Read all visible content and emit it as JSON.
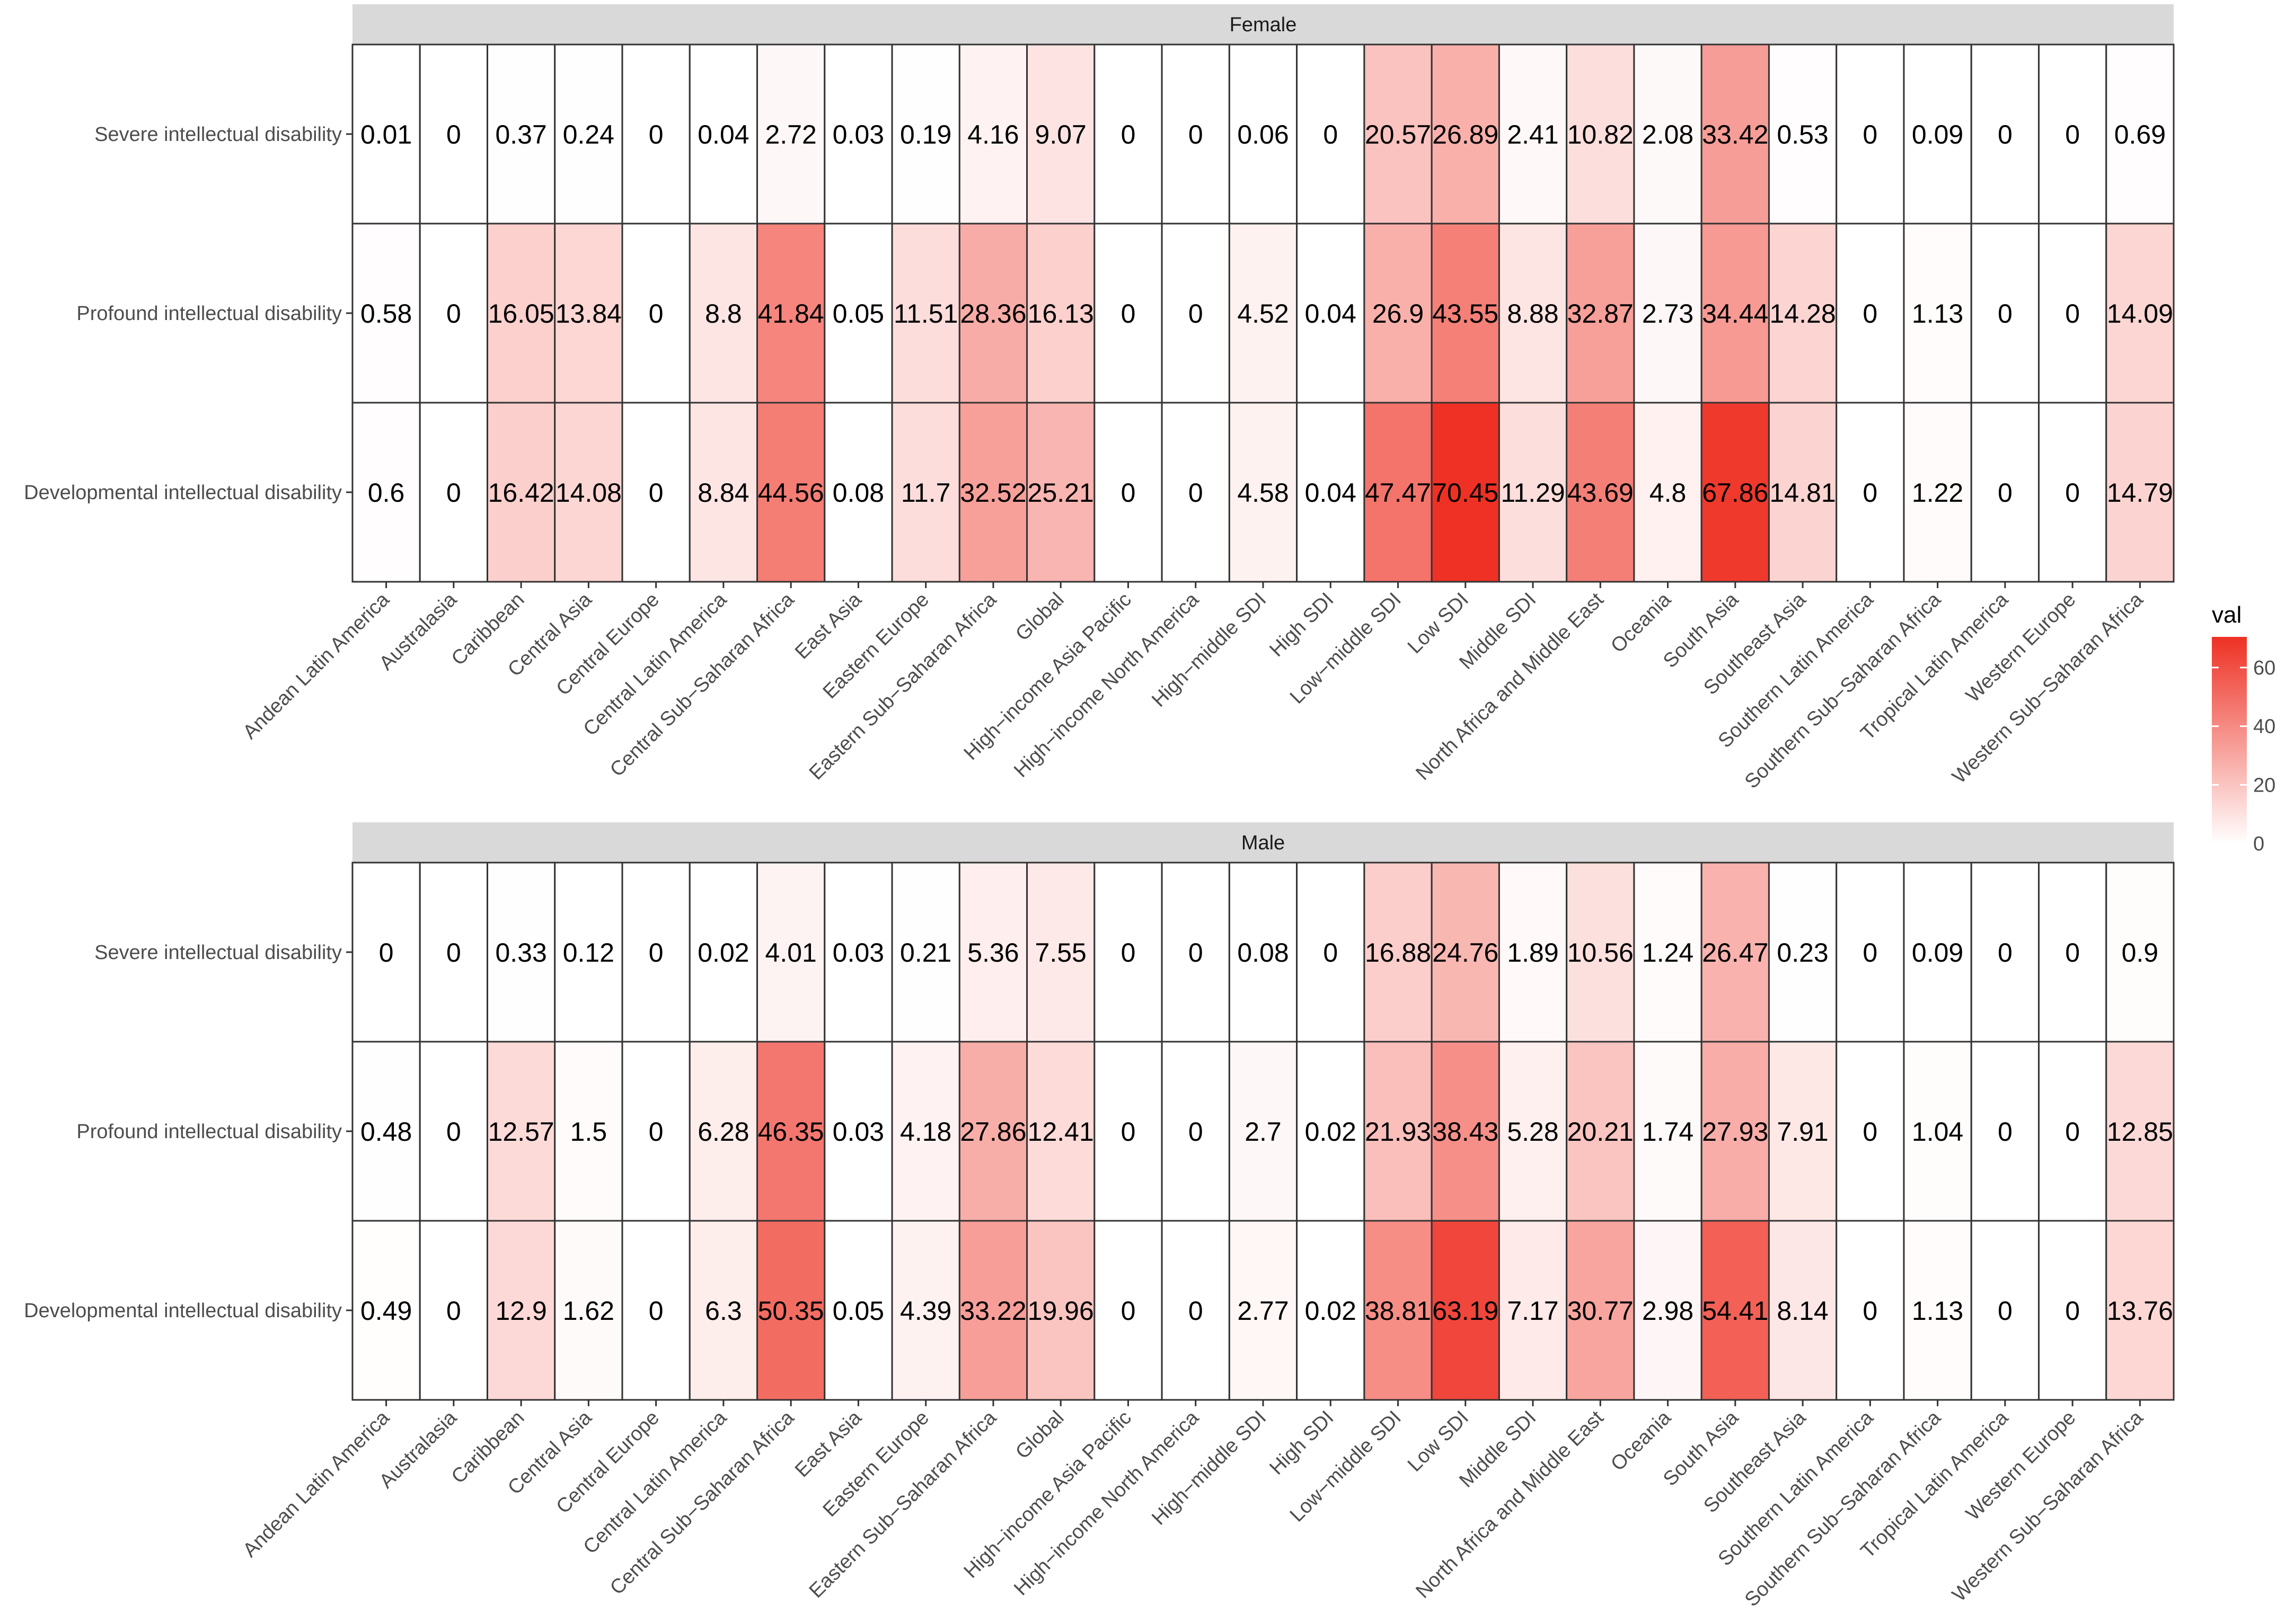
{
  "chart_data": {
    "type": "heatmap",
    "legend": {
      "title": "val",
      "ticks": [
        0,
        20,
        40,
        60
      ],
      "range": [
        0,
        70.45
      ],
      "low_color": "#ffffff",
      "high_color": "#ee3124",
      "placement": "right"
    },
    "categories": [
      "Andean Latin America",
      "Australasia",
      "Caribbean",
      "Central Asia",
      "Central Europe",
      "Central Latin America",
      "Central Sub−Saharan Africa",
      "East Asia",
      "Eastern Europe",
      "Eastern Sub−Saharan Africa",
      "Global",
      "High−income Asia Pacific",
      "High−income North America",
      "High−middle SDI",
      "High SDI",
      "Low−middle SDI",
      "Low SDI",
      "Middle SDI",
      "North Africa and Middle East",
      "Oceania",
      "South Asia",
      "Southeast Asia",
      "Southern Latin America",
      "Southern Sub−Saharan Africa",
      "Tropical Latin America",
      "Western Europe",
      "Western Sub−Saharan Africa"
    ],
    "rows": [
      "Severe intellectual disability",
      "Profound intellectual disability",
      "Developmental intellectual disability"
    ],
    "panels": [
      {
        "title": "Female",
        "values": [
          [
            "0.01",
            "0",
            "0.37",
            "0.24",
            "0",
            "0.04",
            "2.72",
            "0.03",
            "0.19",
            "4.16",
            "9.07",
            "0",
            "0",
            "0.06",
            "0",
            "20.57",
            "26.89",
            "2.41",
            "10.82",
            "2.08",
            "33.42",
            "0.53",
            "0",
            "0.09",
            "0",
            "0",
            "0.69"
          ],
          [
            "0.58",
            "0",
            "16.05",
            "13.84",
            "0",
            "8.8",
            "41.84",
            "0.05",
            "11.51",
            "28.36",
            "16.13",
            "0",
            "0",
            "4.52",
            "0.04",
            "26.9",
            "43.55",
            "8.88",
            "32.87",
            "2.73",
            "34.44",
            "14.28",
            "0",
            "1.13",
            "0",
            "0",
            "14.09"
          ],
          [
            "0.6",
            "0",
            "16.42",
            "14.08",
            "0",
            "8.84",
            "44.56",
            "0.08",
            "11.7",
            "32.52",
            "25.21",
            "0",
            "0",
            "4.58",
            "0.04",
            "47.47",
            "70.45",
            "11.29",
            "43.69",
            "4.8",
            "67.86",
            "14.81",
            "0",
            "1.22",
            "0",
            "0",
            "14.79"
          ]
        ]
      },
      {
        "title": "Male",
        "values": [
          [
            "0",
            "0",
            "0.33",
            "0.12",
            "0",
            "0.02",
            "4.01",
            "0.03",
            "0.21",
            "5.36",
            "7.55",
            "0",
            "0",
            "0.08",
            "0",
            "16.88",
            "24.76",
            "1.89",
            "10.56",
            "1.24",
            "26.47",
            "0.23",
            "0",
            "0.09",
            "0",
            "0",
            "0.9"
          ],
          [
            "0.48",
            "0",
            "12.57",
            "1.5",
            "0",
            "6.28",
            "46.35",
            "0.03",
            "4.18",
            "27.86",
            "12.41",
            "0",
            "0",
            "2.7",
            "0.02",
            "21.93",
            "38.43",
            "5.28",
            "20.21",
            "1.74",
            "27.93",
            "7.91",
            "0",
            "1.04",
            "0",
            "0",
            "12.85"
          ],
          [
            "0.49",
            "0",
            "12.9",
            "1.62",
            "0",
            "6.3",
            "50.35",
            "0.05",
            "4.39",
            "33.22",
            "19.96",
            "0",
            "0",
            "2.77",
            "0.02",
            "38.81",
            "63.19",
            "7.17",
            "30.77",
            "2.98",
            "54.41",
            "8.14",
            "0",
            "1.13",
            "0",
            "0",
            "13.76"
          ]
        ]
      }
    ]
  }
}
